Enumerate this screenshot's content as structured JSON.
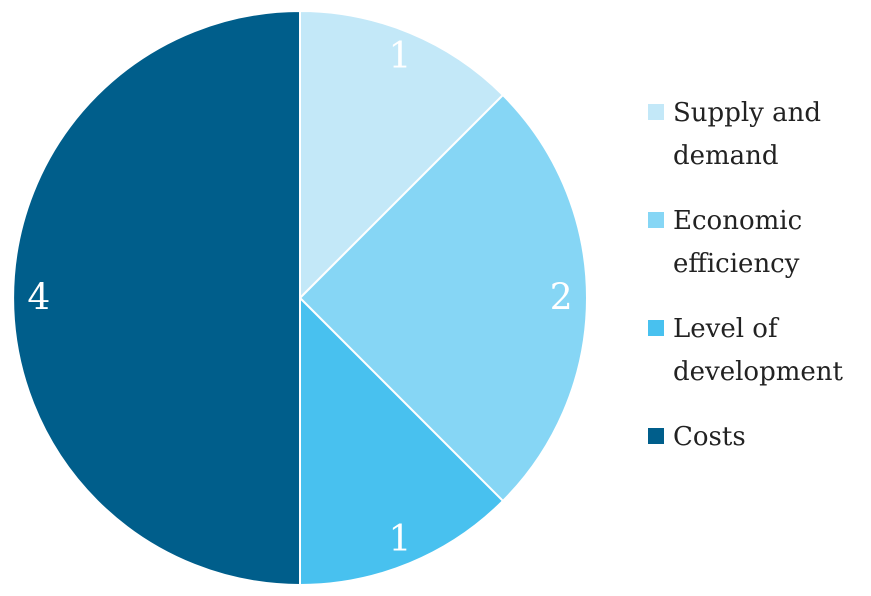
{
  "chart_data": {
    "type": "pie",
    "title": "",
    "categories": [
      "Supply and demand",
      "Economic efficiency",
      "Level of development",
      "Costs"
    ],
    "values": [
      1,
      2,
      1,
      4
    ],
    "data_labels": [
      "1",
      "2",
      "1",
      "4"
    ],
    "colors": [
      "#c3e8f8",
      "#86d6f5",
      "#48c1ef",
      "#005e8b"
    ],
    "start_angle": "12 o'clock",
    "direction": "clockwise",
    "legend_placement": "right"
  },
  "legend": {
    "items": [
      {
        "label": "Supply and\ndemand",
        "color": "#c3e8f8"
      },
      {
        "label": "Economic\nefficiency",
        "color": "#86d6f5"
      },
      {
        "label": "Level of\ndevelopment",
        "color": "#48c1ef"
      },
      {
        "label": "Costs",
        "color": "#005e8b"
      }
    ]
  }
}
